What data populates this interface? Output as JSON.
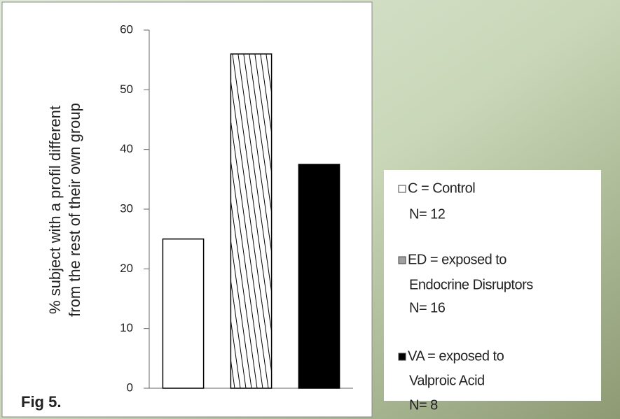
{
  "chart_data": {
    "type": "bar",
    "ylabel": [
      "% subject with a profil different",
      "from the rest of their own group"
    ],
    "annotation": "Fig 5.",
    "categories": [
      null,
      null,
      null
    ],
    "values": [
      25,
      56,
      37.5
    ],
    "fills": [
      "#ffffff",
      "hatch",
      "#000000"
    ],
    "ylim": [
      0,
      60
    ],
    "yticks": [
      0,
      10,
      20,
      30,
      40,
      50,
      60
    ],
    "legend": [
      {
        "lines": [
          "C = Control",
          "N= 12"
        ],
        "color": "#ffffff"
      },
      {
        "lines": [
          "ED = exposed to",
          "Endocrine Disruptors",
          "N= 16"
        ],
        "color": "#a0a0a0"
      },
      {
        "lines": [
          "VA = exposed to",
          "Valproic Acid",
          "N= 8"
        ],
        "color": "#000000"
      }
    ]
  }
}
